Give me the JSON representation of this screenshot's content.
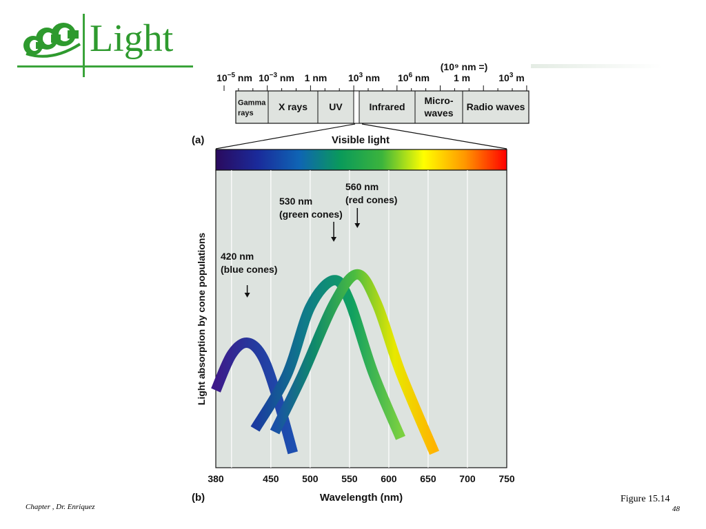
{
  "slide": {
    "title": "Light",
    "footer_left": "Chapter , Dr. Enriquez",
    "figure_caption": "Figure 15.14",
    "page_number": "48",
    "accent_color": "#2e9a2e"
  },
  "spectrum": {
    "scale_note": "(10⁹ nm =)",
    "scale_labels": [
      {
        "base": "10",
        "exp": "−5",
        "unit": " nm"
      },
      {
        "base": "10",
        "exp": "−3",
        "unit": " nm"
      },
      {
        "base": "1 nm",
        "exp": "",
        "unit": ""
      },
      {
        "base": "10",
        "exp": "3",
        "unit": " nm"
      },
      {
        "base": "10",
        "exp": "6",
        "unit": " nm"
      },
      {
        "base": "1 m",
        "exp": "",
        "unit": ""
      },
      {
        "base": "10",
        "exp": "3",
        "unit": " m"
      }
    ],
    "bands": [
      {
        "label": [
          "Gamma",
          "rays"
        ]
      },
      {
        "label": [
          "X rays"
        ]
      },
      {
        "label": [
          "UV"
        ]
      },
      {
        "label": [
          ""
        ]
      },
      {
        "label": [
          "Infrared"
        ]
      },
      {
        "label": [
          "Micro-",
          "waves"
        ]
      },
      {
        "label": [
          "Radio waves"
        ]
      }
    ]
  },
  "panel_a": {
    "letter": "(a)",
    "visible_label": "Visible light",
    "gradient_colors": [
      "#2a0a5e",
      "#1a2a9a",
      "#0f64b4",
      "#0a9a5a",
      "#3cb43c",
      "#ffff00",
      "#ff9600",
      "#ff0000"
    ]
  },
  "chart_data": {
    "type": "line",
    "xlabel": "Wavelength (nm)",
    "ylabel": "Light absorption by cone populations",
    "panel_letter": "(b)",
    "xlim": [
      380,
      750
    ],
    "x_ticks": [
      380,
      450,
      500,
      550,
      600,
      650,
      700,
      750
    ],
    "y_axis_values_shown": false,
    "series": [
      {
        "points": [
          [
            380,
            0.26
          ],
          [
            400,
            0.38
          ],
          [
            420,
            0.42
          ],
          [
            440,
            0.37
          ],
          [
            460,
            0.22
          ],
          [
            478,
            0.05
          ]
        ],
        "colors": [
          "#3d1a8a",
          "#243a9e",
          "#1d4fb0"
        ]
      },
      {
        "points": [
          [
            430,
            0.13
          ],
          [
            470,
            0.31
          ],
          [
            500,
            0.54
          ],
          [
            530,
            0.63
          ],
          [
            550,
            0.56
          ],
          [
            580,
            0.32
          ],
          [
            615,
            0.1
          ]
        ],
        "colors": [
          "#1a3aa0",
          "#0f7a8a",
          "#10a060",
          "#7ad040"
        ]
      },
      {
        "points": [
          [
            455,
            0.12
          ],
          [
            490,
            0.31
          ],
          [
            530,
            0.55
          ],
          [
            560,
            0.65
          ],
          [
            585,
            0.55
          ],
          [
            615,
            0.32
          ],
          [
            658,
            0.05
          ]
        ],
        "colors": [
          "#1a50a8",
          "#0f8a6a",
          "#4cbc40",
          "#e8e800",
          "#ffb400"
        ]
      }
    ],
    "annotations": [
      {
        "lines": [
          "420 nm",
          "(blue cones)"
        ],
        "x": 420
      },
      {
        "lines": [
          "530 nm",
          "(green cones)"
        ],
        "x": 530
      },
      {
        "lines": [
          "560 nm",
          "(red cones)"
        ],
        "x": 560
      }
    ]
  }
}
